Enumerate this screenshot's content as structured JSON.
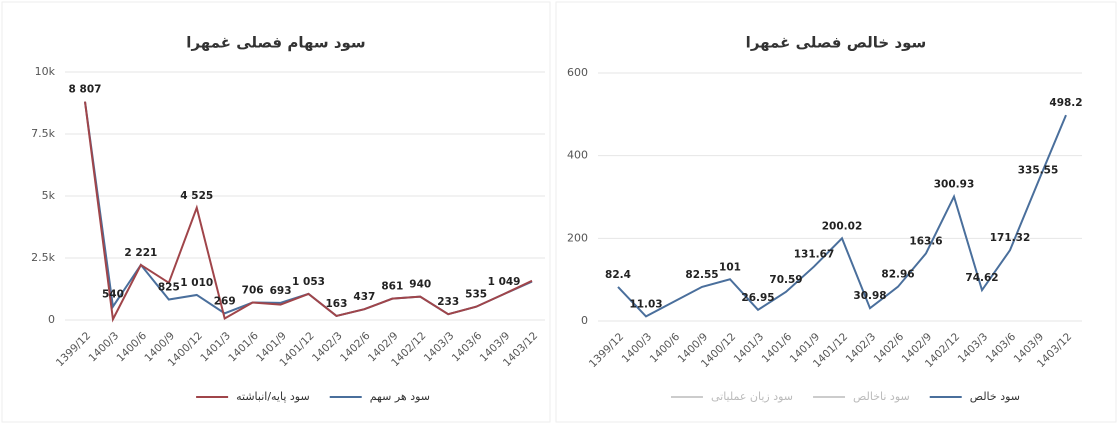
{
  "chart_data": [
    {
      "type": "line",
      "title": "سود سهام فصلی غمهرا",
      "categories": [
        "1399/12",
        "1400/3",
        "1400/6",
        "1400/9",
        "1400/12",
        "1401/3",
        "1401/6",
        "1401/9",
        "1401/12",
        "1402/3",
        "1402/6",
        "1402/9",
        "1402/12",
        "1403/3",
        "1403/6",
        "1403/9",
        "1403/12"
      ],
      "series": [
        {
          "name": "سود هر سهم",
          "color": "#4a6f9c",
          "values": [
            8807,
            540,
            2221,
            825,
            1010,
            269,
            706,
            693,
            1053,
            163,
            437,
            861,
            940,
            233,
            535,
            1049,
            1550
          ],
          "value_labels": [
            "8 807",
            "540",
            "2 221",
            "825",
            "1 010",
            "269",
            "706",
            "693",
            "1 053",
            "163",
            "437",
            "861",
            "940",
            "233",
            "535",
            "1 049",
            null
          ]
        },
        {
          "name": "سود پایه/انباشته",
          "color": "#a0454a",
          "values": [
            8807,
            30,
            2221,
            1500,
            4525,
            60,
            706,
            620,
            1053,
            163,
            437,
            861,
            940,
            233,
            535,
            1049,
            1580
          ],
          "value_labels": [
            null,
            null,
            null,
            null,
            "4 525",
            null,
            null,
            null,
            null,
            null,
            null,
            null,
            null,
            null,
            null,
            null,
            null
          ]
        }
      ],
      "ylim": [
        0,
        10000
      ],
      "yticks": [
        0,
        {
          "value": 2500,
          "label": "2.5k"
        },
        {
          "value": 5000,
          "label": "5k"
        },
        {
          "value": 7500,
          "label": "7.5k"
        },
        {
          "value": 10000,
          "label": "10k"
        }
      ],
      "grid": true
    },
    {
      "type": "line",
      "title": "سود خالص فصلی غمهرا",
      "categories": [
        "1399/12",
        "1400/3",
        "1400/6",
        "1400/9",
        "1400/12",
        "1401/3",
        "1401/6",
        "1401/9",
        "1401/12",
        "1402/3",
        "1402/6",
        "1402/9",
        "1402/12",
        "1403/3",
        "1403/6",
        "1403/9",
        "1403/12"
      ],
      "series": [
        {
          "name": "سود خالص",
          "color": "#4a6f9c",
          "values": [
            82.4,
            11.03,
            47,
            82.55,
            101,
            26.95,
            70.59,
            131.67,
            200.02,
            30.98,
            82.96,
            163.6,
            300.93,
            74.62,
            171.32,
            335.55,
            498.2
          ],
          "value_labels": [
            "82.4",
            "11.03",
            null,
            "82.55",
            "101",
            "26.95",
            "70.59",
            "131.67",
            "200.02",
            "30.98",
            "82.96",
            "163.6",
            "300.93",
            "74.62",
            "171.32",
            "335.55",
            "498.2"
          ]
        }
      ],
      "hidden_series": [
        {
          "name": "سود ناخالص",
          "color": "#cccccc"
        },
        {
          "name": "سود زیان عملیاتی",
          "color": "#cccccc"
        }
      ],
      "ylim": [
        0,
        600
      ],
      "yticks": [
        0,
        200,
        400,
        600
      ],
      "grid": true
    }
  ]
}
